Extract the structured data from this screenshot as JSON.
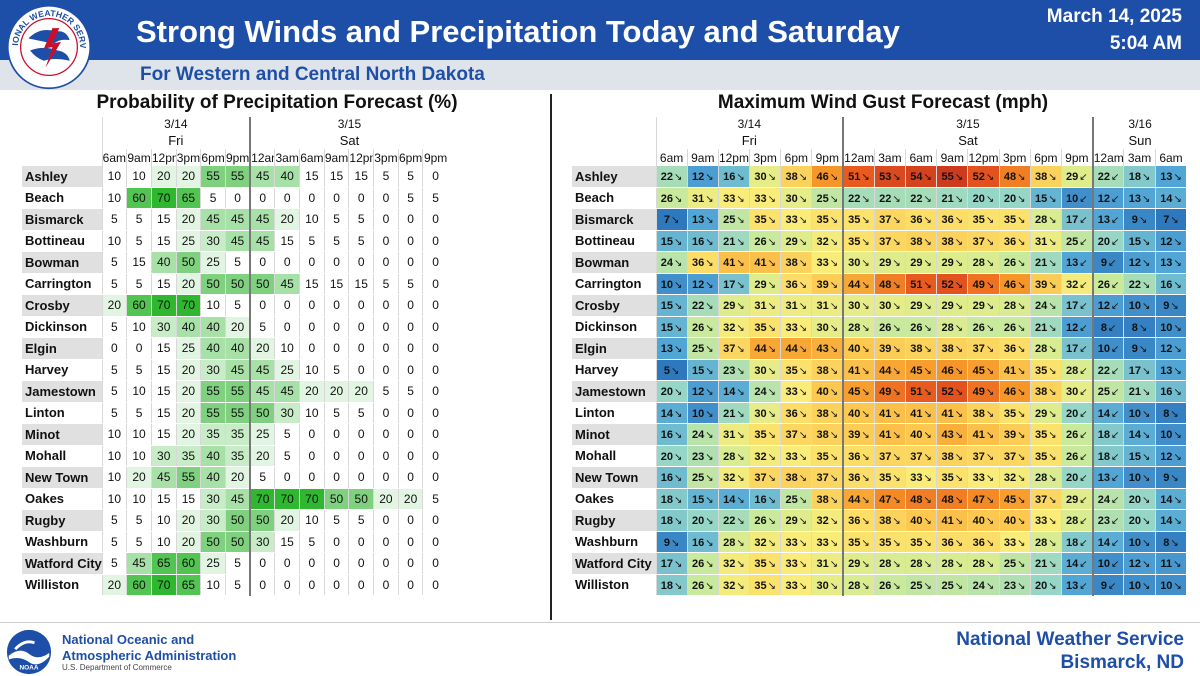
{
  "header": {
    "title": "Strong Winds and Precipitation Today and Saturday",
    "subtitle": "For Western and Central North Dakota",
    "date": "March 14, 2025",
    "time": "5:04 AM",
    "logo_text": "NATIONAL WEATHER SERVICE",
    "colors": {
      "banner": "#1e4fa8",
      "subbanner": "#dfe3ea"
    }
  },
  "pop": {
    "title": "Probability of Precipitation Forecast (%)",
    "days": [
      {
        "date": "3/14",
        "label": "Fri",
        "hours": [
          "6am",
          "9am",
          "12pm",
          "3pm",
          "6pm",
          "9pm"
        ]
      },
      {
        "date": "3/15",
        "label": "Sat",
        "hours": [
          "12am",
          "3am",
          "6am",
          "9am",
          "12pm",
          "3pm",
          "6pm",
          "9pm"
        ]
      }
    ],
    "rows": [
      {
        "loc": "Ashley",
        "v": [
          10,
          10,
          20,
          20,
          55,
          55,
          45,
          40,
          15,
          15,
          15,
          5,
          5,
          0
        ]
      },
      {
        "loc": "Beach",
        "v": [
          10,
          60,
          70,
          65,
          5,
          0,
          0,
          0,
          0,
          0,
          0,
          0,
          5,
          5
        ]
      },
      {
        "loc": "Bismarck",
        "v": [
          5,
          5,
          15,
          20,
          45,
          45,
          45,
          20,
          10,
          5,
          5,
          0,
          0,
          0
        ]
      },
      {
        "loc": "Bottineau",
        "v": [
          10,
          5,
          15,
          25,
          30,
          45,
          45,
          15,
          5,
          5,
          5,
          0,
          0,
          0
        ]
      },
      {
        "loc": "Bowman",
        "v": [
          5,
          15,
          40,
          50,
          25,
          5,
          0,
          0,
          0,
          0,
          0,
          0,
          0,
          0
        ]
      },
      {
        "loc": "Carrington",
        "v": [
          5,
          5,
          15,
          20,
          50,
          50,
          50,
          45,
          15,
          15,
          15,
          5,
          5,
          0
        ]
      },
      {
        "loc": "Crosby",
        "v": [
          20,
          60,
          70,
          70,
          10,
          5,
          0,
          0,
          0,
          0,
          0,
          0,
          0,
          0
        ]
      },
      {
        "loc": "Dickinson",
        "v": [
          5,
          10,
          30,
          40,
          40,
          20,
          5,
          0,
          0,
          0,
          0,
          0,
          0,
          0
        ]
      },
      {
        "loc": "Elgin",
        "v": [
          0,
          0,
          15,
          25,
          40,
          40,
          20,
          10,
          0,
          0,
          0,
          0,
          0,
          0
        ]
      },
      {
        "loc": "Harvey",
        "v": [
          5,
          5,
          15,
          20,
          30,
          45,
          45,
          25,
          10,
          5,
          0,
          0,
          0,
          0
        ]
      },
      {
        "loc": "Jamestown",
        "v": [
          5,
          10,
          15,
          20,
          55,
          55,
          45,
          45,
          20,
          20,
          20,
          5,
          5,
          0
        ]
      },
      {
        "loc": "Linton",
        "v": [
          5,
          5,
          15,
          20,
          55,
          55,
          50,
          30,
          10,
          5,
          5,
          0,
          0,
          0
        ]
      },
      {
        "loc": "Minot",
        "v": [
          10,
          10,
          15,
          20,
          35,
          35,
          25,
          5,
          0,
          0,
          0,
          0,
          0,
          0
        ]
      },
      {
        "loc": "Mohall",
        "v": [
          10,
          10,
          30,
          35,
          40,
          35,
          20,
          5,
          0,
          0,
          0,
          0,
          0,
          0
        ]
      },
      {
        "loc": "New Town",
        "v": [
          10,
          20,
          45,
          55,
          40,
          20,
          5,
          0,
          0,
          0,
          0,
          0,
          0,
          0
        ]
      },
      {
        "loc": "Oakes",
        "v": [
          10,
          10,
          15,
          15,
          30,
          45,
          70,
          70,
          70,
          50,
          50,
          20,
          20,
          5
        ]
      },
      {
        "loc": "Rugby",
        "v": [
          5,
          5,
          10,
          20,
          30,
          50,
          50,
          20,
          10,
          5,
          5,
          0,
          0,
          0
        ]
      },
      {
        "loc": "Washburn",
        "v": [
          5,
          5,
          10,
          20,
          50,
          50,
          30,
          15,
          5,
          0,
          0,
          0,
          0,
          0
        ]
      },
      {
        "loc": "Watford City",
        "v": [
          5,
          45,
          65,
          60,
          25,
          5,
          0,
          0,
          0,
          0,
          0,
          0,
          0,
          0
        ]
      },
      {
        "loc": "Williston",
        "v": [
          20,
          60,
          70,
          65,
          10,
          5,
          0,
          0,
          0,
          0,
          0,
          0,
          0,
          0
        ]
      }
    ]
  },
  "wind": {
    "title": "Maximum Wind Gust Forecast (mph)",
    "days": [
      {
        "date": "3/14",
        "label": "Fri",
        "hours": [
          "6am",
          "9am",
          "12pm",
          "3pm",
          "6pm",
          "9pm"
        ]
      },
      {
        "date": "3/15",
        "label": "Sat",
        "hours": [
          "12am",
          "3am",
          "6am",
          "9am",
          "12pm",
          "3pm",
          "6pm",
          "9pm"
        ]
      },
      {
        "date": "3/16",
        "label": "Sun",
        "hours": [
          "12am",
          "3am",
          "6am"
        ]
      }
    ],
    "rows": [
      {
        "loc": "Ashley",
        "v": [
          22,
          12,
          16,
          30,
          38,
          46,
          51,
          53,
          54,
          55,
          52,
          48,
          38,
          29,
          22,
          18,
          13
        ]
      },
      {
        "loc": "Beach",
        "v": [
          26,
          31,
          33,
          33,
          30,
          25,
          22,
          22,
          22,
          21,
          20,
          20,
          15,
          10,
          12,
          13,
          14
        ]
      },
      {
        "loc": "Bismarck",
        "v": [
          7,
          13,
          25,
          35,
          33,
          35,
          35,
          37,
          36,
          36,
          35,
          35,
          28,
          17,
          13,
          9,
          7
        ]
      },
      {
        "loc": "Bottineau",
        "v": [
          15,
          16,
          21,
          26,
          29,
          32,
          35,
          37,
          38,
          38,
          37,
          36,
          31,
          25,
          20,
          15,
          12
        ]
      },
      {
        "loc": "Bowman",
        "v": [
          24,
          36,
          41,
          41,
          38,
          33,
          30,
          29,
          29,
          29,
          28,
          26,
          21,
          13,
          9,
          12,
          13
        ]
      },
      {
        "loc": "Carrington",
        "v": [
          10,
          12,
          17,
          29,
          36,
          39,
          44,
          48,
          51,
          52,
          49,
          46,
          39,
          32,
          26,
          22,
          16
        ]
      },
      {
        "loc": "Crosby",
        "v": [
          15,
          22,
          29,
          31,
          31,
          31,
          30,
          30,
          29,
          29,
          29,
          28,
          24,
          17,
          12,
          10,
          9
        ]
      },
      {
        "loc": "Dickinson",
        "v": [
          15,
          26,
          32,
          35,
          33,
          30,
          28,
          26,
          26,
          28,
          26,
          26,
          21,
          12,
          8,
          8,
          10
        ]
      },
      {
        "loc": "Elgin",
        "v": [
          13,
          25,
          37,
          44,
          44,
          43,
          40,
          39,
          38,
          38,
          37,
          36,
          28,
          17,
          10,
          9,
          12
        ]
      },
      {
        "loc": "Harvey",
        "v": [
          5,
          15,
          23,
          30,
          35,
          38,
          41,
          44,
          45,
          46,
          45,
          41,
          35,
          28,
          22,
          17,
          13
        ]
      },
      {
        "loc": "Jamestown",
        "v": [
          20,
          12,
          14,
          24,
          33,
          40,
          45,
          49,
          51,
          52,
          49,
          46,
          38,
          30,
          25,
          21,
          16
        ]
      },
      {
        "loc": "Linton",
        "v": [
          14,
          10,
          21,
          30,
          36,
          38,
          40,
          41,
          41,
          41,
          38,
          35,
          29,
          20,
          14,
          10,
          8
        ]
      },
      {
        "loc": "Minot",
        "v": [
          16,
          24,
          31,
          35,
          37,
          38,
          39,
          41,
          40,
          43,
          41,
          39,
          35,
          26,
          18,
          14,
          10
        ]
      },
      {
        "loc": "Mohall",
        "v": [
          20,
          23,
          28,
          32,
          33,
          35,
          36,
          37,
          37,
          38,
          37,
          37,
          35,
          26,
          18,
          15,
          12
        ]
      },
      {
        "loc": "New Town",
        "v": [
          16,
          25,
          32,
          37,
          38,
          37,
          36,
          35,
          33,
          35,
          33,
          32,
          28,
          20,
          13,
          10,
          9
        ]
      },
      {
        "loc": "Oakes",
        "v": [
          18,
          15,
          14,
          16,
          25,
          38,
          44,
          47,
          48,
          48,
          47,
          45,
          37,
          29,
          24,
          20,
          14
        ]
      },
      {
        "loc": "Rugby",
        "v": [
          18,
          20,
          22,
          26,
          29,
          32,
          36,
          38,
          40,
          41,
          40,
          40,
          33,
          28,
          23,
          20,
          14
        ]
      },
      {
        "loc": "Washburn",
        "v": [
          9,
          16,
          28,
          32,
          33,
          33,
          35,
          35,
          35,
          36,
          36,
          33,
          28,
          18,
          14,
          10,
          8
        ]
      },
      {
        "loc": "Watford City",
        "v": [
          17,
          26,
          32,
          35,
          33,
          31,
          29,
          28,
          28,
          28,
          28,
          25,
          21,
          14,
          10,
          12,
          11
        ]
      },
      {
        "loc": "Williston",
        "v": [
          18,
          26,
          32,
          35,
          33,
          30,
          28,
          26,
          25,
          25,
          24,
          23,
          20,
          13,
          9,
          10,
          10
        ]
      }
    ]
  },
  "footer": {
    "noaa_line1": "National Oceanic and",
    "noaa_line2": "Atmospheric Administration",
    "noaa_line3": "U.S. Department of Commerce",
    "noaa_logo_text": "NOAA",
    "nws_line1": "National Weather Service",
    "nws_line2": "Bismarck, ND"
  }
}
